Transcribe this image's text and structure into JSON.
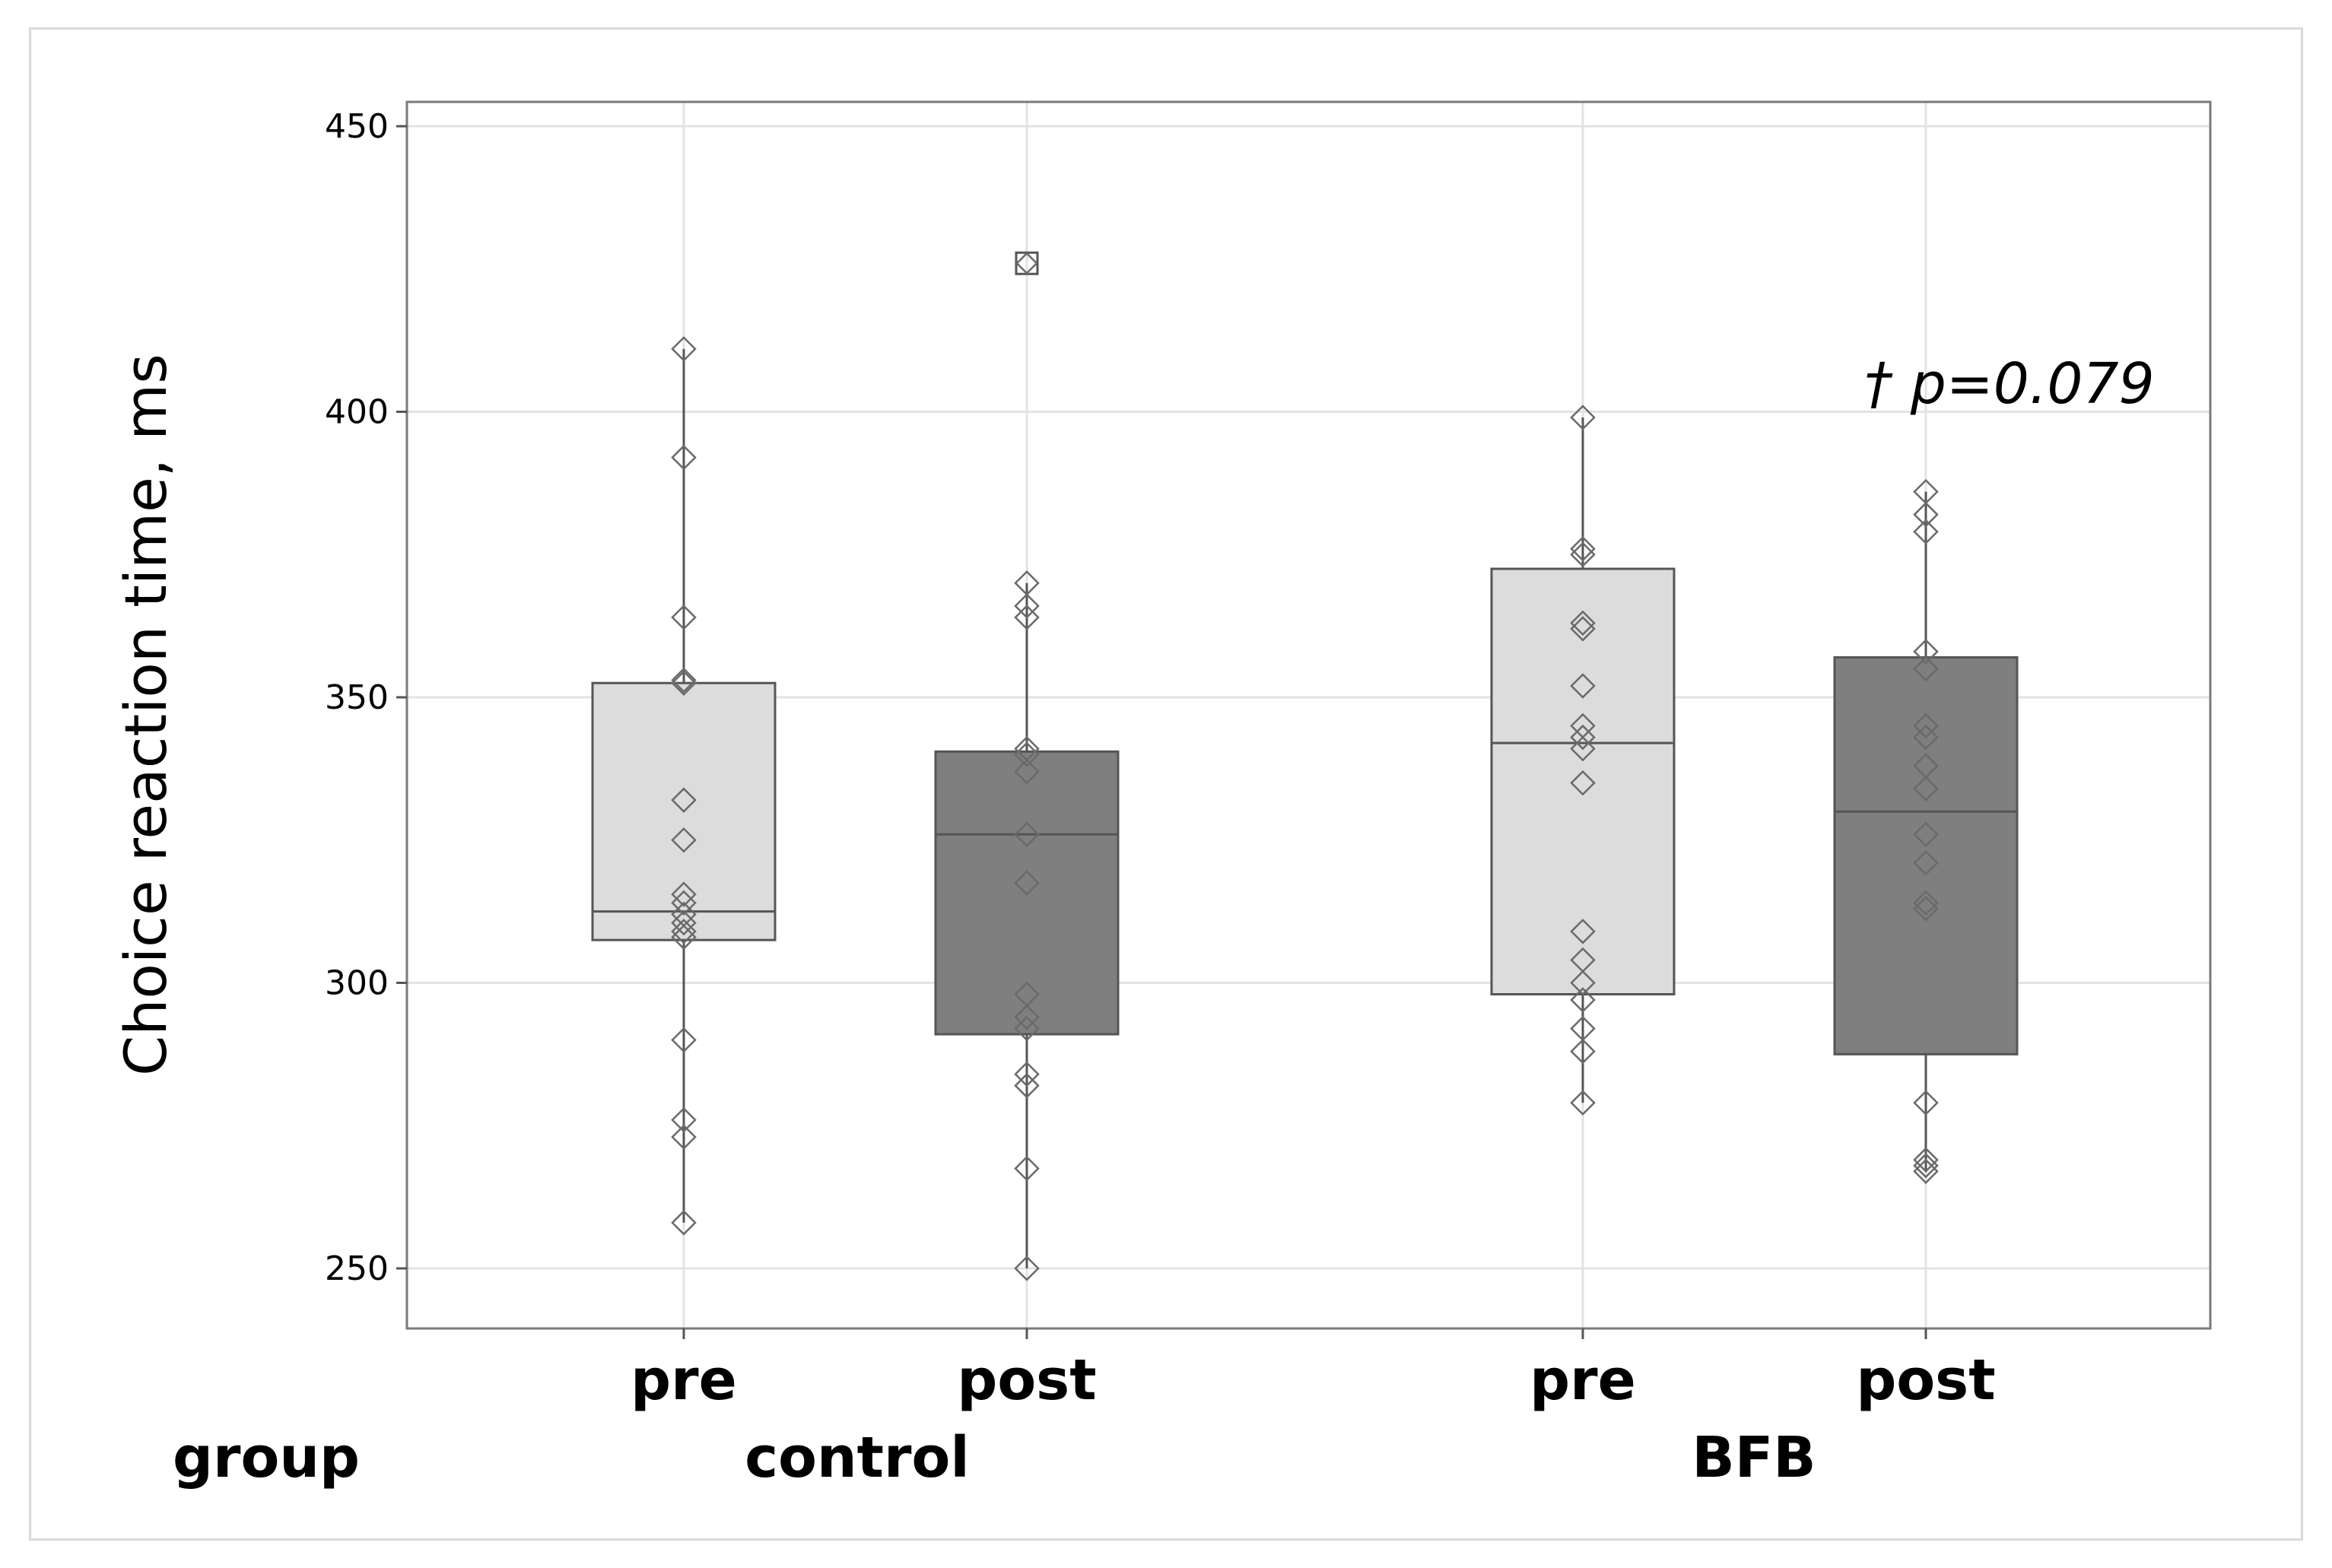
{
  "chart_data": {
    "type": "box",
    "ylabel": "Choice reaction time, ms",
    "ylim": [
      240,
      455
    ],
    "yticks": [
      250,
      300,
      350,
      400,
      450
    ],
    "grid": true,
    "group_axis_label": "group",
    "groups": [
      {
        "name": "control",
        "levels": [
          "pre",
          "post"
        ]
      },
      {
        "name": "BFB",
        "levels": [
          "pre",
          "post"
        ]
      }
    ],
    "annotation": {
      "text": "† p=0.079",
      "group": "BFB",
      "level": "post"
    },
    "boxes": [
      {
        "group": "control",
        "level": "pre",
        "fill": "#dcdcdc",
        "q1": 307.5,
        "median": 312.5,
        "q3": 352.5,
        "whisker_low": 258,
        "whisker_high": 411,
        "outliers": [],
        "points": [
          411,
          392,
          364,
          353,
          352.5,
          332,
          325,
          315.5,
          314,
          312,
          310.5,
          309,
          308,
          290,
          276,
          273,
          258
        ]
      },
      {
        "group": "control",
        "level": "post",
        "fill": "#7f7f7f",
        "q1": 291,
        "median": 326,
        "q3": 340.5,
        "whisker_low": 250,
        "whisker_high": 370,
        "outliers": [
          426
        ],
        "points": [
          370,
          366,
          364,
          341,
          340,
          337,
          326,
          317.5,
          298,
          294,
          292,
          284,
          282,
          267.5,
          250
        ]
      },
      {
        "group": "BFB",
        "level": "pre",
        "fill": "#dcdcdc",
        "q1": 298,
        "median": 342,
        "q3": 372.5,
        "whisker_low": 279,
        "whisker_high": 399,
        "outliers": [],
        "points": [
          399,
          376,
          375,
          363,
          362,
          352,
          345,
          343,
          341,
          335,
          309,
          304,
          300,
          297,
          292,
          288,
          279
        ]
      },
      {
        "group": "BFB",
        "level": "post",
        "fill": "#7f7f7f",
        "q1": 287.5,
        "median": 330,
        "q3": 357,
        "whisker_low": 267,
        "whisker_high": 386,
        "outliers": [],
        "points": [
          386,
          382,
          379,
          358,
          355,
          345,
          343,
          338,
          334,
          326,
          321,
          314,
          313,
          279,
          269,
          268,
          267
        ]
      }
    ]
  }
}
